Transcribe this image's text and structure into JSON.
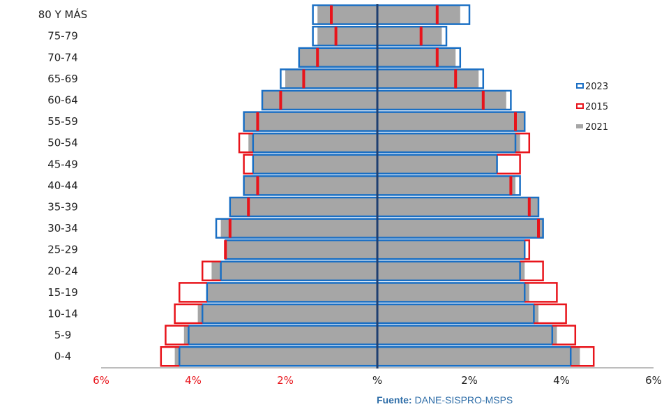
{
  "chart_data": {
    "type": "bar",
    "orientation": "horizontal-pyramid",
    "categories": [
      "0-4",
      "5-9",
      "10-14",
      "15-19",
      "20-24",
      "25-29",
      "30-34",
      "35-39",
      "40-44",
      "45-49",
      "50-54",
      "55-59",
      "60-64",
      "65-69",
      "70-74",
      "75-79",
      "80 Y MÁS"
    ],
    "x_ticks": [
      "6%",
      "4%",
      "2%",
      "%",
      "2%",
      "4%",
      "6%"
    ],
    "xlim": [
      -6,
      6
    ],
    "series": [
      {
        "name": "2023",
        "left": [
          4.3,
          4.1,
          3.8,
          3.7,
          3.4,
          3.3,
          3.5,
          3.2,
          2.9,
          2.7,
          2.7,
          2.9,
          2.5,
          2.1,
          1.7,
          1.4,
          1.4
        ],
        "right": [
          4.2,
          3.8,
          3.4,
          3.2,
          3.1,
          3.2,
          3.6,
          3.5,
          3.1,
          2.6,
          3.0,
          3.2,
          2.9,
          2.3,
          1.8,
          1.5,
          2.0
        ],
        "color": "#1a6fc4"
      },
      {
        "name": "2015",
        "left": [
          4.7,
          4.6,
          4.4,
          4.3,
          3.8,
          3.3,
          3.2,
          2.8,
          2.6,
          2.9,
          3.0,
          2.6,
          2.1,
          1.6,
          1.3,
          0.9,
          1.0
        ],
        "right": [
          4.7,
          4.3,
          4.1,
          3.9,
          3.6,
          3.3,
          3.5,
          3.3,
          2.9,
          3.1,
          3.3,
          3.0,
          2.3,
          1.7,
          1.3,
          0.95,
          1.3
        ],
        "color": "#e8141b"
      },
      {
        "name": "2021",
        "left": [
          4.4,
          4.2,
          3.9,
          3.7,
          3.6,
          3.3,
          3.4,
          3.2,
          2.9,
          2.7,
          2.8,
          2.9,
          2.5,
          2.0,
          1.7,
          1.3,
          1.3
        ],
        "right": [
          4.4,
          3.9,
          3.5,
          3.3,
          3.2,
          3.2,
          3.6,
          3.5,
          3.0,
          2.6,
          3.1,
          3.2,
          2.8,
          2.2,
          1.7,
          1.4,
          1.8
        ],
        "color": "#a6a6a6"
      }
    ],
    "legend_position": "right",
    "grid": false,
    "colors": {
      "axis_center": "#1f3f70",
      "tick_negative": "#e8141b",
      "tick_positive": "#222222",
      "baseline": "#bdbdbd"
    }
  },
  "source": {
    "key": "Fuente:",
    "value": "DANE-SISPRO-MSPS"
  }
}
